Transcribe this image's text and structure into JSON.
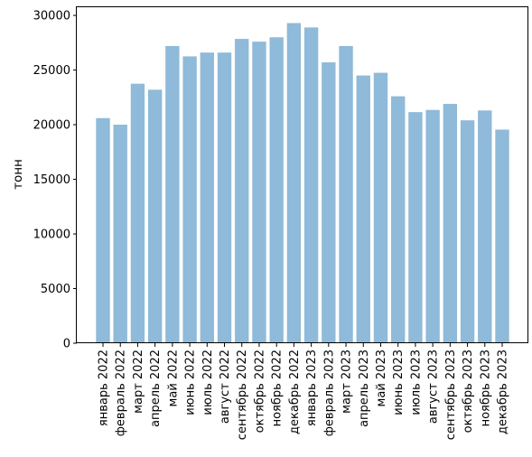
{
  "chart_data": {
    "type": "bar",
    "ylabel": "тонн",
    "ylim": [
      0,
      30750
    ],
    "yticks": [
      0,
      5000,
      10000,
      15000,
      20000,
      25000,
      30000
    ],
    "categories": [
      "январь 2022",
      "февраль 2022",
      "март 2022",
      "апрель 2022",
      "май 2022",
      "июнь 2022",
      "июль 2022",
      "август 2022",
      "сентябрь 2022",
      "октябрь 2022",
      "ноябрь 2022",
      "декабрь 2022",
      "январь 2023",
      "февраль 2023",
      "март 2023",
      "апрель 2023",
      "май 2023",
      "июнь 2023",
      "июль 2023",
      "август 2023",
      "сентябрь 2023",
      "октябрь 2023",
      "ноябрь 2023",
      "декабрь 2023"
    ],
    "values": [
      20600,
      20000,
      23750,
      23200,
      27200,
      26250,
      26600,
      26600,
      27850,
      27600,
      28000,
      29300,
      28900,
      25700,
      27200,
      24500,
      24750,
      22600,
      21150,
      21350,
      21900,
      20400,
      21300,
      19550
    ],
    "bar_color": "#8fbad9",
    "grid": false,
    "legend": false
  }
}
